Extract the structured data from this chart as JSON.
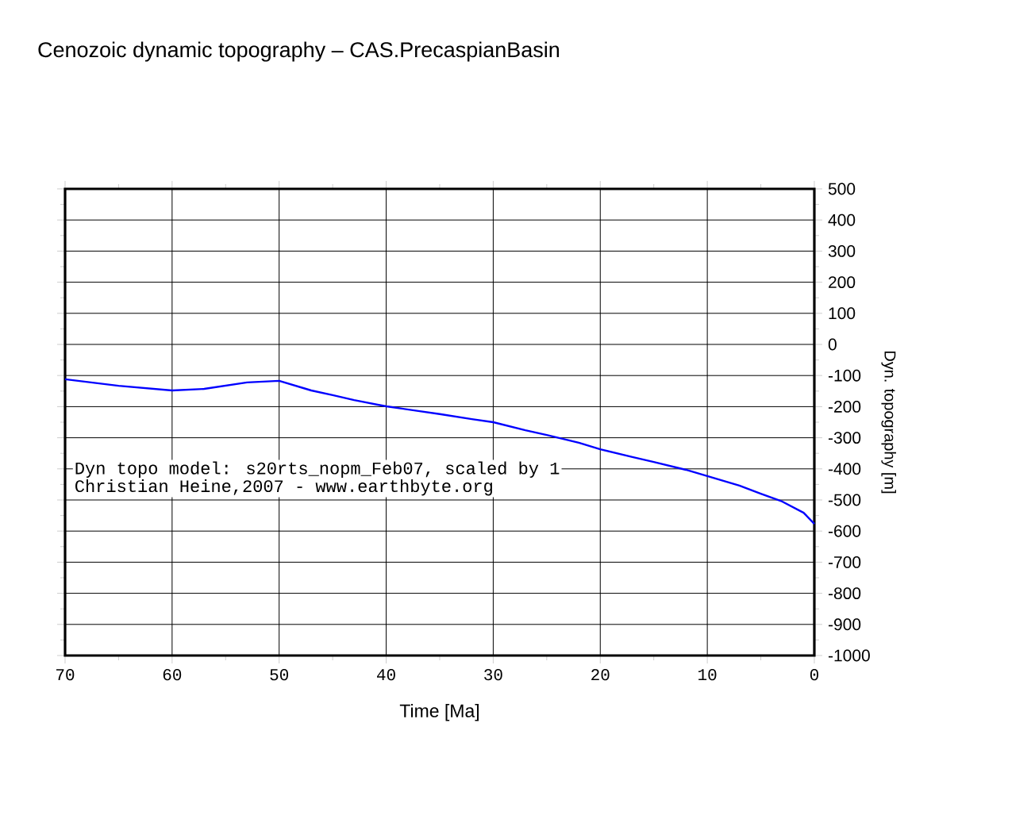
{
  "chart_data": {
    "type": "line",
    "title": "Cenozoic dynamic topography – CAS.PrecaspianBasin",
    "xlabel": "Time [Ma]",
    "ylabel": "Dyn. topography [m]",
    "x": [
      70,
      65,
      60,
      57,
      53,
      50,
      47,
      45,
      43,
      40,
      37,
      35,
      32,
      30,
      27,
      25,
      22,
      20,
      17,
      15,
      12,
      10,
      7,
      5,
      3,
      1,
      0
    ],
    "values": [
      -112,
      -133,
      -148,
      -143,
      -122,
      -117,
      -148,
      -163,
      -179,
      -199,
      -214,
      -224,
      -240,
      -250,
      -276,
      -291,
      -316,
      -337,
      -362,
      -378,
      -403,
      -423,
      -454,
      -480,
      -505,
      -541,
      -577
    ],
    "color": "#0000ff",
    "xlim": [
      70,
      0
    ],
    "ylim": [
      -1000,
      500
    ],
    "xticks": [
      70,
      60,
      50,
      40,
      30,
      20,
      10,
      0
    ],
    "yticks": [
      500,
      400,
      300,
      200,
      100,
      0,
      -100,
      -200,
      -300,
      -400,
      -500,
      -600,
      -700,
      -800,
      -900,
      -1000
    ],
    "grid": true,
    "annotations": [
      "Dyn topo model: s20rts_nopm_Feb07, scaled by 1",
      "Christian Heine,2007 - www.earthbyte.org"
    ]
  }
}
